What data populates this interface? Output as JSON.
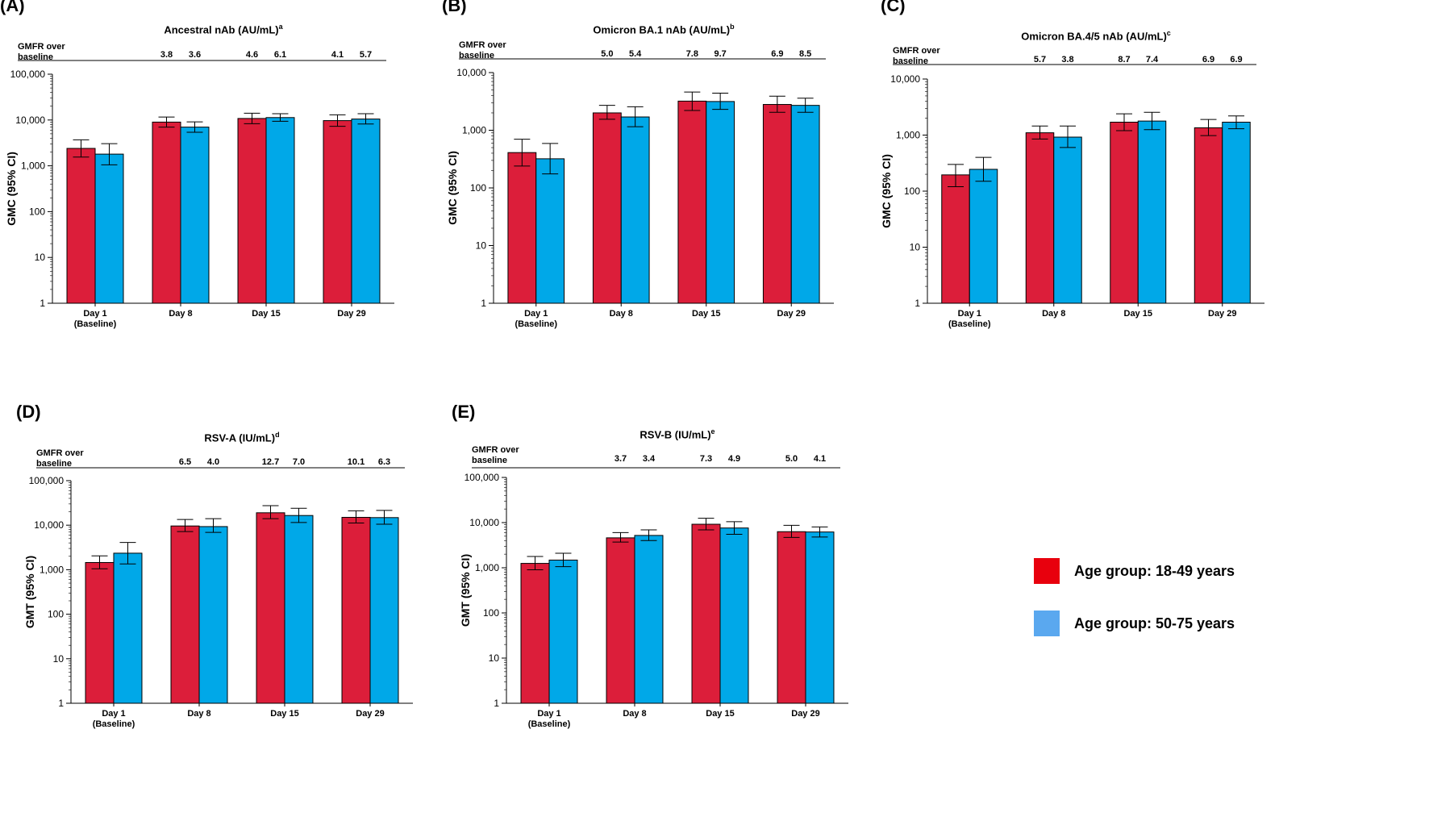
{
  "colors": {
    "group1": "#dc1e3a",
    "group2": "#00a8e8",
    "legend_group2": "#5aa8ef"
  },
  "legend": [
    {
      "label": "Age group: 18-49 years",
      "color": "#e8000d"
    },
    {
      "label": "Age group: 50-75 years",
      "color": "#5aa8ef"
    }
  ],
  "chart_data": [
    {
      "panel": "(A)",
      "type": "bar",
      "scale": "log",
      "title": "Ancestral nAb (AU/mL)",
      "title_sup": "a",
      "ylabel": "GMC (95% CI)",
      "gmfr_label": [
        "GMFR over",
        "baseline"
      ],
      "categories": [
        [
          "Day 1",
          "(Baseline)"
        ],
        [
          "Day 8"
        ],
        [
          "Day 15"
        ],
        [
          "Day 29"
        ]
      ],
      "yticks": [
        1,
        10,
        100,
        1000,
        10000,
        100000
      ],
      "ytick_labels": [
        "1",
        "10",
        "100",
        "1,000",
        "10,000",
        "100,000"
      ],
      "ylim": [
        1,
        100000
      ],
      "gmfr": [
        [
          null,
          null
        ],
        [
          "3.8",
          "3.6"
        ],
        [
          "4.6",
          "6.1"
        ],
        [
          "4.1",
          "5.7"
        ]
      ],
      "series": [
        {
          "name": "Age group: 18-49 years",
          "values": [
            2400,
            9000,
            10800,
            9700
          ],
          "ci_low": [
            1550,
            7000,
            8300,
            7300
          ],
          "ci_high": [
            3700,
            11600,
            14100,
            13000
          ]
        },
        {
          "name": "Age group: 50-75 years",
          "values": [
            1800,
            7000,
            11300,
            10500
          ],
          "ci_low": [
            1050,
            5400,
            9400,
            8200
          ],
          "ci_high": [
            3050,
            9100,
            13700,
            13700
          ]
        }
      ]
    },
    {
      "panel": "(B)",
      "type": "bar",
      "scale": "log",
      "title": "Omicron BA.1 nAb (AU/mL)",
      "title_sup": "b",
      "ylabel": "GMC (95% CI)",
      "gmfr_label": [
        "GMFR over",
        "baseline"
      ],
      "categories": [
        [
          "Day 1",
          "(Baseline)"
        ],
        [
          "Day 8"
        ],
        [
          "Day 15"
        ],
        [
          "Day 29"
        ]
      ],
      "yticks": [
        1,
        10,
        100,
        1000,
        10000
      ],
      "ytick_labels": [
        "1",
        "10",
        "100",
        "1,000",
        "10,000"
      ],
      "ylim": [
        1,
        10000
      ],
      "gmfr": [
        [
          null,
          null
        ],
        [
          "5.0",
          "5.4"
        ],
        [
          "7.8",
          "9.7"
        ],
        [
          "6.9",
          "8.5"
        ]
      ],
      "series": [
        {
          "name": "Age group: 18-49 years",
          "values": [
            410,
            2000,
            3200,
            2800
          ],
          "ci_low": [
            240,
            1550,
            2200,
            2050
          ],
          "ci_high": [
            700,
            2700,
            4600,
            3900
          ]
        },
        {
          "name": "Age group: 50-75 years",
          "values": [
            320,
            1700,
            3150,
            2700
          ],
          "ci_low": [
            175,
            1150,
            2300,
            2050
          ],
          "ci_high": [
            590,
            2550,
            4400,
            3600
          ]
        }
      ]
    },
    {
      "panel": "(C)",
      "type": "bar",
      "scale": "log",
      "title": "Omicron BA.4/5 nAb (AU/mL)",
      "title_sup": "c",
      "ylabel": "GMC (95% CI)",
      "gmfr_label": [
        "GMFR over",
        "baseline"
      ],
      "categories": [
        [
          "Day 1",
          "(Baseline)"
        ],
        [
          "Day 8"
        ],
        [
          "Day 15"
        ],
        [
          "Day 29"
        ]
      ],
      "yticks": [
        1,
        10,
        100,
        1000,
        10000
      ],
      "ytick_labels": [
        "1",
        "10",
        "100",
        "1,000",
        "10,000"
      ],
      "ylim": [
        1,
        10000
      ],
      "gmfr": [
        [
          null,
          null
        ],
        [
          "5.7",
          "3.8"
        ],
        [
          "8.7",
          "7.4"
        ],
        [
          "6.9",
          "6.9"
        ]
      ],
      "series": [
        {
          "name": "Age group: 18-49 years",
          "values": [
            195,
            1100,
            1700,
            1350
          ],
          "ci_low": [
            120,
            850,
            1200,
            980
          ],
          "ci_high": [
            300,
            1450,
            2400,
            1900
          ]
        },
        {
          "name": "Age group: 50-75 years",
          "values": [
            245,
            920,
            1780,
            1700
          ],
          "ci_low": [
            150,
            600,
            1250,
            1300
          ],
          "ci_high": [
            400,
            1450,
            2550,
            2200
          ]
        }
      ]
    },
    {
      "panel": "(D)",
      "type": "bar",
      "scale": "log",
      "title": "RSV-A (IU/mL)",
      "title_sup": "d",
      "ylabel": "GMT (95% CI)",
      "gmfr_label": [
        "GMFR over",
        "baseline"
      ],
      "categories": [
        [
          "Day 1",
          "(Baseline)"
        ],
        [
          "Day 8"
        ],
        [
          "Day 15"
        ],
        [
          "Day 29"
        ]
      ],
      "yticks": [
        1,
        10,
        100,
        1000,
        10000,
        100000
      ],
      "ytick_labels": [
        "1",
        "10",
        "100",
        "1,000",
        "10,000",
        "100,000"
      ],
      "ylim": [
        1,
        100000
      ],
      "gmfr": [
        [
          null,
          null
        ],
        [
          "6.5",
          "4.0"
        ],
        [
          "12.7",
          "7.0"
        ],
        [
          "10.1",
          "6.3"
        ]
      ],
      "series": [
        {
          "name": "Age group: 18-49 years",
          "values": [
            1450,
            9600,
            19000,
            15000
          ],
          "ci_low": [
            1050,
            7200,
            14000,
            11200
          ],
          "ci_high": [
            2050,
            13400,
            27500,
            21000
          ]
        },
        {
          "name": "Age group: 50-75 years",
          "values": [
            2350,
            9300,
            16500,
            14800
          ],
          "ci_low": [
            1350,
            6900,
            11500,
            10500
          ],
          "ci_high": [
            4100,
            14000,
            24000,
            21500
          ]
        }
      ]
    },
    {
      "panel": "(E)",
      "type": "bar",
      "scale": "log",
      "title": "RSV-B (IU/mL)",
      "title_sup": "e",
      "ylabel": "GMT (95% CI)",
      "gmfr_label": [
        "GMFR over",
        "baseline"
      ],
      "categories": [
        [
          "Day 1",
          "(Baseline)"
        ],
        [
          "Day 8"
        ],
        [
          "Day 15"
        ],
        [
          "Day 29"
        ]
      ],
      "yticks": [
        1,
        10,
        100,
        1000,
        10000,
        100000
      ],
      "ytick_labels": [
        "1",
        "10",
        "100",
        "1,000",
        "10,000",
        "100,000"
      ],
      "ylim": [
        1,
        100000
      ],
      "gmfr": [
        [
          null,
          null
        ],
        [
          "3.7",
          "3.4"
        ],
        [
          "7.3",
          "4.9"
        ],
        [
          "5.0",
          "4.1"
        ]
      ],
      "series": [
        {
          "name": "Age group: 18-49 years",
          "values": [
            1250,
            4600,
            9200,
            6300
          ],
          "ci_low": [
            900,
            3700,
            6900,
            4700
          ],
          "ci_high": [
            1780,
            6000,
            12500,
            8700
          ]
        },
        {
          "name": "Age group: 50-75 years",
          "values": [
            1480,
            5200,
            7600,
            6200
          ],
          "ci_low": [
            1060,
            4000,
            5500,
            4800
          ],
          "ci_high": [
            2100,
            6900,
            10500,
            8000
          ]
        }
      ]
    }
  ]
}
